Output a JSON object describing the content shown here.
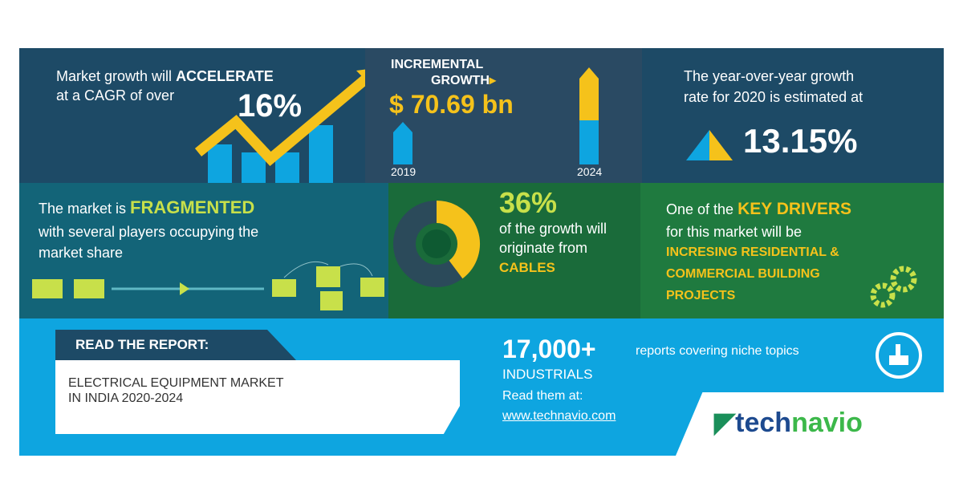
{
  "cagr": {
    "line1_prefix": "Market growth will",
    "line1_emph": "ACCELERATE",
    "line2": "at a CAGR of over",
    "value": "16%"
  },
  "incremental": {
    "label_line1": "INCREMENTAL",
    "label_line2": "GROWTH",
    "value": "$ 70.69 bn",
    "year_start": "2019",
    "year_end": "2024"
  },
  "yoy": {
    "line1": "The year-over-year growth",
    "line2": "rate for 2020 is estimated at",
    "value": "13.15%"
  },
  "fragmented": {
    "prefix": "The market is",
    "emph": "FRAGMENTED",
    "line2": "with several players occupying the",
    "line3": "market share"
  },
  "segment": {
    "value": "36%",
    "share_percent": 36,
    "line1": "of the growth will",
    "line2": "originate from",
    "segment": "CABLES"
  },
  "drivers": {
    "prefix": "One of the",
    "emph": "KEY DRIVERS",
    "line2": "for this market will be",
    "d1": "INCRESING RESIDENTIAL &",
    "d2": "COMMERCIAL BUILDING",
    "d3": "PROJECTS"
  },
  "report": {
    "header": "READ THE REPORT:",
    "title_line1": "ELECTRICAL EQUIPMENT MARKET",
    "title_line2": "IN INDIA 2020-2024"
  },
  "promo": {
    "count": "17,000+",
    "count_text": "reports covering niche topics",
    "category": "INDUSTRIALS",
    "read": "Read them at:",
    "url": "www.technavio.com"
  },
  "brand": {
    "logo": "technavio"
  },
  "colors": {
    "navy": "#1d4a66",
    "teal": "#136478",
    "green": "#1a6b3a",
    "blue": "#0ea5e0",
    "yellow": "#f5c21b",
    "lime": "#c8e04a"
  }
}
